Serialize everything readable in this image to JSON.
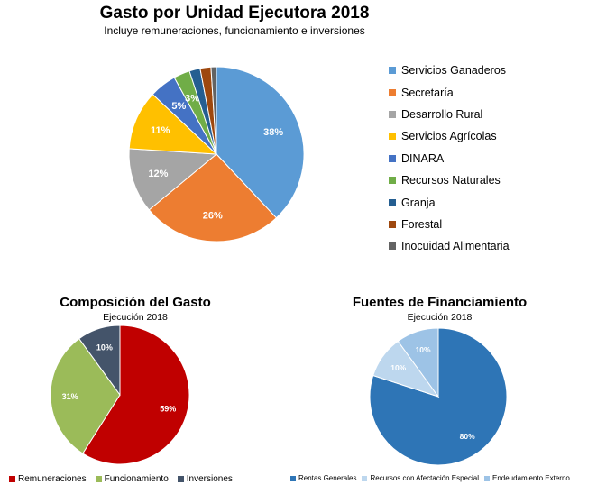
{
  "chart_data": [
    {
      "type": "pie",
      "title": "Gasto por Unidad Ejecutora 2018",
      "subtitle": "Incluye remuneraciones, funcionamiento e inversiones",
      "categories": [
        "Servicios Ganaderos",
        "Secretaría",
        "Desarrollo Rural",
        "Servicios Agrícolas",
        "DINARA",
        "Recursos Naturales",
        "Granja",
        "Forestal",
        "Inocuidad Alimentaria"
      ],
      "values": [
        38,
        26,
        12,
        11,
        5,
        3,
        2,
        2,
        1
      ],
      "value_labels": [
        "38%",
        "26%",
        "12%",
        "11%",
        "5%",
        "3%",
        "",
        "",
        ""
      ],
      "colors": [
        "#5b9bd5",
        "#ed7d31",
        "#a5a5a5",
        "#ffc000",
        "#4472c4",
        "#70ad47",
        "#255e91",
        "#9e480e",
        "#636363"
      ],
      "legend_position": "right"
    },
    {
      "type": "pie",
      "title": "Composición  del Gasto",
      "subtitle": "Ejecución 2018",
      "categories": [
        "Remuneraciones",
        "Funcionamiento",
        "Inversiones"
      ],
      "values": [
        59,
        31,
        10
      ],
      "value_labels": [
        "59%",
        "31%",
        "10%"
      ],
      "colors": [
        "#c00000",
        "#9bbb59",
        "#44546a"
      ],
      "legend_position": "bottom"
    },
    {
      "type": "pie",
      "title": "Fuentes de Financiamiento",
      "subtitle": "Ejecución 2018",
      "categories": [
        "Rentas Generales",
        "Recursos con Afectación Especial",
        "Endeudamiento Externo"
      ],
      "values": [
        80,
        10,
        10
      ],
      "value_labels": [
        "80%",
        "10%",
        "10%"
      ],
      "colors": [
        "#2e75b6",
        "#bdd7ee",
        "#9dc3e6"
      ],
      "legend_position": "bottom"
    }
  ]
}
